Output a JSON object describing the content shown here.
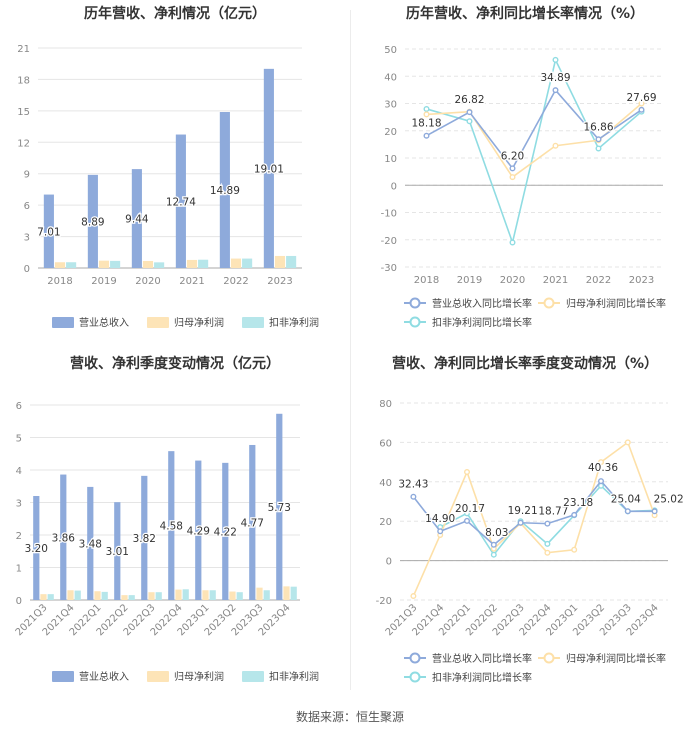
{
  "source": "数据来源：恒生聚源",
  "colors": {
    "revenue": "#8eaadb",
    "parent_profit": "#fde4b7",
    "deducted_profit": "#b6e6ea",
    "revenue_line": "#8eaadb",
    "parent_line": "#fde0a8",
    "deducted_line": "#8fdce2",
    "grid": "#e5e5e5",
    "axis_text": "#888888"
  },
  "chart_data": [
    {
      "id": "annual_revenue_profit",
      "type": "bar",
      "title": "历年营收、净利情况（亿元）",
      "categories": [
        "2018",
        "2019",
        "2020",
        "2021",
        "2022",
        "2023"
      ],
      "series": [
        {
          "name": "营业总收入",
          "values": [
            7.01,
            8.89,
            9.44,
            12.74,
            14.89,
            19.01
          ],
          "labels": [
            "7.01",
            "8.89",
            "9.44",
            "12.74",
            "14.89",
            "19.01"
          ]
        },
        {
          "name": "归母净利润",
          "values": [
            0.55,
            0.7,
            0.67,
            0.77,
            0.9,
            1.15
          ]
        },
        {
          "name": "扣非净利润",
          "values": [
            0.55,
            0.68,
            0.54,
            0.79,
            0.9,
            1.15
          ]
        }
      ],
      "yticks": [
        "0",
        "3",
        "6",
        "9",
        "12",
        "15",
        "18",
        "21"
      ],
      "ylim": [
        0,
        21
      ],
      "legend": "bottom"
    },
    {
      "id": "annual_growth",
      "type": "line",
      "title": "历年营收、净利同比增长率情况（%）",
      "categories": [
        "2018",
        "2019",
        "2020",
        "2021",
        "2022",
        "2023"
      ],
      "series": [
        {
          "name": "营业总收入同比增长率",
          "values": [
            18.18,
            26.82,
            6.2,
            34.89,
            16.86,
            27.69
          ],
          "labels": [
            "18.18",
            "26.82",
            "6.20",
            "34.89",
            "16.86",
            "27.69"
          ]
        },
        {
          "name": "归母净利润同比增长率",
          "values": [
            26,
            27,
            3,
            14.5,
            16.5,
            30
          ]
        },
        {
          "name": "扣非净利润同比增长率",
          "values": [
            28,
            23.5,
            -21,
            46,
            13.5,
            27
          ]
        }
      ],
      "yticks": [
        "-30",
        "-20",
        "-10",
        "0",
        "10",
        "20",
        "30",
        "40",
        "50"
      ],
      "ylim": [
        -30,
        50
      ],
      "legend": "bottom"
    },
    {
      "id": "quarterly_revenue_profit",
      "type": "bar",
      "title": "营收、净利季度变动情况（亿元）",
      "categories": [
        "2021Q3",
        "2021Q4",
        "2022Q1",
        "2022Q2",
        "2022Q3",
        "2022Q4",
        "2023Q1",
        "2023Q2",
        "2023Q3",
        "2023Q4"
      ],
      "series": [
        {
          "name": "营业总收入",
          "values": [
            3.2,
            3.86,
            3.48,
            3.01,
            3.82,
            4.58,
            4.29,
            4.22,
            4.77,
            5.73
          ],
          "labels": [
            "3.20",
            "3.86",
            "3.48",
            "3.01",
            "3.82",
            "4.58",
            "4.29",
            "4.22",
            "4.77",
            "5.73"
          ]
        },
        {
          "name": "归母净利润",
          "values": [
            0.18,
            0.3,
            0.27,
            0.15,
            0.24,
            0.32,
            0.3,
            0.26,
            0.38,
            0.42
          ]
        },
        {
          "name": "扣非净利润",
          "values": [
            0.18,
            0.29,
            0.25,
            0.15,
            0.24,
            0.33,
            0.3,
            0.24,
            0.3,
            0.41
          ]
        }
      ],
      "yticks": [
        "0",
        "1",
        "2",
        "3",
        "4",
        "5",
        "6"
      ],
      "ylim": [
        0,
        6
      ],
      "legend": "bottom"
    },
    {
      "id": "quarterly_growth",
      "type": "line",
      "title": "营收、净利同比增长率季度变动情况（%）",
      "categories": [
        "2021Q3",
        "2021Q4",
        "2022Q1",
        "2022Q2",
        "2022Q3",
        "2022Q4",
        "2023Q1",
        "2023Q2",
        "2023Q3",
        "2023Q4"
      ],
      "series": [
        {
          "name": "营业总收入同比增长率",
          "values": [
            32.43,
            14.9,
            20.17,
            8.03,
            19.21,
            18.77,
            23.18,
            40.36,
            25.04,
            25.02
          ],
          "labels": [
            "32.43",
            "14.90",
            "20.17",
            "8.03",
            "19.21",
            "18.77",
            "23.18",
            "40.36",
            "25.04",
            "25.02"
          ]
        },
        {
          "name": "归母净利润同比增长率",
          "values": [
            -18,
            13,
            45,
            6,
            19,
            4,
            5.5,
            50,
            60,
            23
          ]
        },
        {
          "name": "扣非净利润同比增长率",
          "values": [
            null,
            17,
            24,
            3,
            20,
            8.5,
            23,
            38,
            25,
            25.5
          ]
        }
      ],
      "yticks": [
        "-20",
        "0",
        "20",
        "40",
        "60",
        "80"
      ],
      "ylim": [
        -20,
        80
      ],
      "legend": "bottom"
    }
  ]
}
